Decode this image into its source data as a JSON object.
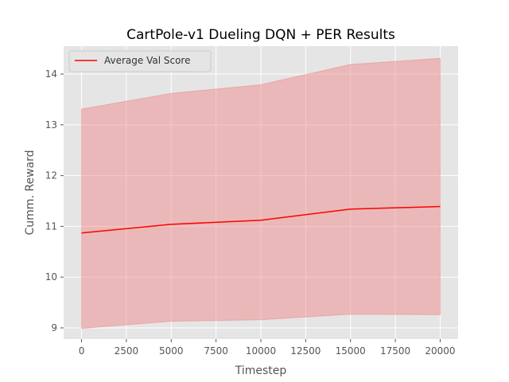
{
  "chart_data": {
    "type": "line",
    "title": "CartPole-v1 Dueling DQN + PER Results",
    "xlabel": "Timestep",
    "ylabel": "Cumm. Reward",
    "xlim": [
      -1000,
      21000
    ],
    "ylim": [
      8.78,
      14.55
    ],
    "x_ticks": [
      0,
      2500,
      5000,
      7500,
      10000,
      12500,
      15000,
      17500,
      20000
    ],
    "y_ticks": [
      9,
      10,
      11,
      12,
      13,
      14
    ],
    "grid": true,
    "legend_position": "top-left",
    "x": [
      0,
      5000,
      10000,
      15000,
      20000
    ],
    "series": [
      {
        "name": "Average Val Score",
        "values": [
          10.87,
          11.04,
          11.12,
          11.34,
          11.39
        ],
        "band_upper": [
          13.31,
          13.62,
          13.79,
          14.19,
          14.31
        ],
        "band_lower": [
          8.99,
          9.13,
          9.16,
          9.27,
          9.26
        ],
        "color": "#ff0000",
        "band_color": "#f08080"
      }
    ],
    "background_color": "#e5e5e5",
    "grid_color": "#ffffff"
  }
}
